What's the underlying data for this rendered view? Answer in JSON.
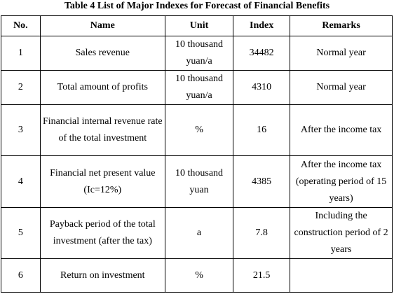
{
  "title": "Table 4 List of Major Indexes for Forecast of Financial Benefits",
  "headers": [
    "No.",
    "Name",
    "Unit",
    "Index",
    "Remarks"
  ],
  "rows": [
    {
      "no": "1",
      "name": "Sales revenue",
      "unit": "10 thousand yuan/a",
      "index": "34482",
      "remarks": "Normal year"
    },
    {
      "no": "2",
      "name": "Total amount of profits",
      "unit": "10 thousand yuan/a",
      "index": "4310",
      "remarks": "Normal year"
    },
    {
      "no": "3",
      "name": "Financial internal revenue rate of the total investment",
      "unit": "%",
      "index": "16",
      "remarks": "After the income tax"
    },
    {
      "no": "4",
      "name": "Financial net present value (Ic=12%)",
      "unit": "10 thousand yuan",
      "index": "4385",
      "remarks": "After the income tax (operating period of 15 years)"
    },
    {
      "no": "5",
      "name": "Payback period of the total investment (after the tax)",
      "unit": "a",
      "index": "7.8",
      "remarks": "Including the construction period of 2 years"
    },
    {
      "no": "6",
      "name": "Return on investment",
      "unit": "%",
      "index": "21.5",
      "remarks": ""
    }
  ]
}
